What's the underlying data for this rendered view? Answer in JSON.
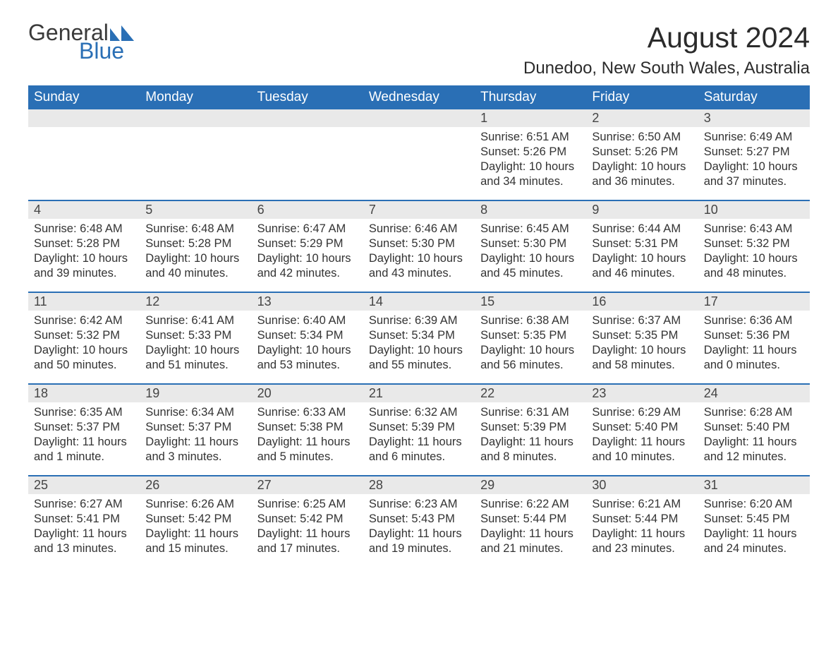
{
  "logo": {
    "text1": "General",
    "text2": "Blue",
    "icon_color": "#2a6fb5",
    "text1_color": "#3a3a3a",
    "text2_color": "#2a6fb5"
  },
  "title": "August 2024",
  "location": "Dunedoo, New South Wales, Australia",
  "colors": {
    "header_bg": "#2a6fb5",
    "header_text": "#ffffff",
    "daynum_bg": "#e9e9e9",
    "week_border": "#2a6fb5",
    "body_text": "#333333",
    "page_bg": "#ffffff"
  },
  "typography": {
    "title_fontsize": 41,
    "location_fontsize": 24,
    "dayheader_fontsize": 19,
    "daynum_fontsize": 18,
    "body_fontsize": 16.5
  },
  "day_names": [
    "Sunday",
    "Monday",
    "Tuesday",
    "Wednesday",
    "Thursday",
    "Friday",
    "Saturday"
  ],
  "weeks": [
    [
      null,
      null,
      null,
      null,
      {
        "n": "1",
        "sunrise": "6:51 AM",
        "sunset": "5:26 PM",
        "daylight": "10 hours and 34 minutes."
      },
      {
        "n": "2",
        "sunrise": "6:50 AM",
        "sunset": "5:26 PM",
        "daylight": "10 hours and 36 minutes."
      },
      {
        "n": "3",
        "sunrise": "6:49 AM",
        "sunset": "5:27 PM",
        "daylight": "10 hours and 37 minutes."
      }
    ],
    [
      {
        "n": "4",
        "sunrise": "6:48 AM",
        "sunset": "5:28 PM",
        "daylight": "10 hours and 39 minutes."
      },
      {
        "n": "5",
        "sunrise": "6:48 AM",
        "sunset": "5:28 PM",
        "daylight": "10 hours and 40 minutes."
      },
      {
        "n": "6",
        "sunrise": "6:47 AM",
        "sunset": "5:29 PM",
        "daylight": "10 hours and 42 minutes."
      },
      {
        "n": "7",
        "sunrise": "6:46 AM",
        "sunset": "5:30 PM",
        "daylight": "10 hours and 43 minutes."
      },
      {
        "n": "8",
        "sunrise": "6:45 AM",
        "sunset": "5:30 PM",
        "daylight": "10 hours and 45 minutes."
      },
      {
        "n": "9",
        "sunrise": "6:44 AM",
        "sunset": "5:31 PM",
        "daylight": "10 hours and 46 minutes."
      },
      {
        "n": "10",
        "sunrise": "6:43 AM",
        "sunset": "5:32 PM",
        "daylight": "10 hours and 48 minutes."
      }
    ],
    [
      {
        "n": "11",
        "sunrise": "6:42 AM",
        "sunset": "5:32 PM",
        "daylight": "10 hours and 50 minutes."
      },
      {
        "n": "12",
        "sunrise": "6:41 AM",
        "sunset": "5:33 PM",
        "daylight": "10 hours and 51 minutes."
      },
      {
        "n": "13",
        "sunrise": "6:40 AM",
        "sunset": "5:34 PM",
        "daylight": "10 hours and 53 minutes."
      },
      {
        "n": "14",
        "sunrise": "6:39 AM",
        "sunset": "5:34 PM",
        "daylight": "10 hours and 55 minutes."
      },
      {
        "n": "15",
        "sunrise": "6:38 AM",
        "sunset": "5:35 PM",
        "daylight": "10 hours and 56 minutes."
      },
      {
        "n": "16",
        "sunrise": "6:37 AM",
        "sunset": "5:35 PM",
        "daylight": "10 hours and 58 minutes."
      },
      {
        "n": "17",
        "sunrise": "6:36 AM",
        "sunset": "5:36 PM",
        "daylight": "11 hours and 0 minutes."
      }
    ],
    [
      {
        "n": "18",
        "sunrise": "6:35 AM",
        "sunset": "5:37 PM",
        "daylight": "11 hours and 1 minute."
      },
      {
        "n": "19",
        "sunrise": "6:34 AM",
        "sunset": "5:37 PM",
        "daylight": "11 hours and 3 minutes."
      },
      {
        "n": "20",
        "sunrise": "6:33 AM",
        "sunset": "5:38 PM",
        "daylight": "11 hours and 5 minutes."
      },
      {
        "n": "21",
        "sunrise": "6:32 AM",
        "sunset": "5:39 PM",
        "daylight": "11 hours and 6 minutes."
      },
      {
        "n": "22",
        "sunrise": "6:31 AM",
        "sunset": "5:39 PM",
        "daylight": "11 hours and 8 minutes."
      },
      {
        "n": "23",
        "sunrise": "6:29 AM",
        "sunset": "5:40 PM",
        "daylight": "11 hours and 10 minutes."
      },
      {
        "n": "24",
        "sunrise": "6:28 AM",
        "sunset": "5:40 PM",
        "daylight": "11 hours and 12 minutes."
      }
    ],
    [
      {
        "n": "25",
        "sunrise": "6:27 AM",
        "sunset": "5:41 PM",
        "daylight": "11 hours and 13 minutes."
      },
      {
        "n": "26",
        "sunrise": "6:26 AM",
        "sunset": "5:42 PM",
        "daylight": "11 hours and 15 minutes."
      },
      {
        "n": "27",
        "sunrise": "6:25 AM",
        "sunset": "5:42 PM",
        "daylight": "11 hours and 17 minutes."
      },
      {
        "n": "28",
        "sunrise": "6:23 AM",
        "sunset": "5:43 PM",
        "daylight": "11 hours and 19 minutes."
      },
      {
        "n": "29",
        "sunrise": "6:22 AM",
        "sunset": "5:44 PM",
        "daylight": "11 hours and 21 minutes."
      },
      {
        "n": "30",
        "sunrise": "6:21 AM",
        "sunset": "5:44 PM",
        "daylight": "11 hours and 23 minutes."
      },
      {
        "n": "31",
        "sunrise": "6:20 AM",
        "sunset": "5:45 PM",
        "daylight": "11 hours and 24 minutes."
      }
    ]
  ],
  "labels": {
    "sunrise": "Sunrise: ",
    "sunset": "Sunset: ",
    "daylight": "Daylight: "
  }
}
